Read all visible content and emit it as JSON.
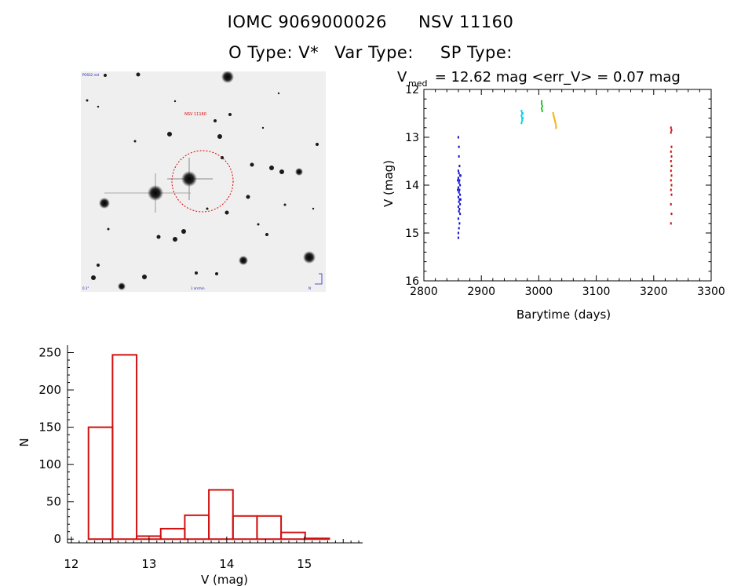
{
  "header": {
    "object_id": "IOMC 9069000026",
    "alt_name": "NSV 11160",
    "o_type_label": "O Type: V*",
    "var_type_label": "Var Type:",
    "sp_type_label": "SP Type:"
  },
  "sky_image": {
    "marker_label": "NSV 11160",
    "corner_labels": [
      "POSS2 red",
      "0.1°",
      "1 arcmin",
      "N"
    ]
  },
  "chart_data": [
    {
      "type": "scatter",
      "title_main": "V",
      "title_sub": "med",
      "title_rest": " = 12.62 mag <err_V> = 0.07 mag",
      "xlabel": "Barytime (days)",
      "ylabel": "V (mag)",
      "xlim": [
        2800,
        3300
      ],
      "ylim": [
        16,
        12
      ],
      "y_inverted": true,
      "x_ticks": [
        2800,
        2900,
        3000,
        3100,
        3200,
        3300
      ],
      "y_ticks": [
        12,
        13,
        14,
        15,
        16
      ],
      "series": [
        {
          "color": "#1010d0",
          "points": [
            [
              2860,
              13.0
            ],
            [
              2861,
              13.2
            ],
            [
              2861,
              13.4
            ],
            [
              2862,
              13.6
            ],
            [
              2860,
              13.7
            ],
            [
              2861,
              13.75
            ],
            [
              2863,
              13.8
            ],
            [
              2860,
              13.85
            ],
            [
              2862,
              13.9
            ],
            [
              2861,
              13.95
            ],
            [
              2863,
              14.0
            ],
            [
              2860,
              14.05
            ],
            [
              2862,
              14.1
            ],
            [
              2861,
              14.15
            ],
            [
              2863,
              14.2
            ],
            [
              2860,
              14.25
            ],
            [
              2862,
              14.3
            ],
            [
              2861,
              14.35
            ],
            [
              2863,
              14.4
            ],
            [
              2860,
              14.45
            ],
            [
              2862,
              14.5
            ],
            [
              2861,
              14.55
            ],
            [
              2863,
              14.6
            ],
            [
              2860,
              14.7
            ],
            [
              2862,
              14.8
            ],
            [
              2861,
              14.9
            ],
            [
              2860,
              15.0
            ],
            [
              2860,
              15.1
            ],
            [
              2864,
              13.8
            ],
            [
              2864,
              14.3
            ],
            [
              2859,
              14.1
            ],
            [
              2859,
              13.9
            ]
          ]
        },
        {
          "color": "#00d0e8",
          "points": [
            [
              2970,
              12.45
            ],
            [
              2971,
              12.5
            ],
            [
              2970,
              12.55
            ],
            [
              2972,
              12.6
            ],
            [
              2971,
              12.65
            ],
            [
              2970,
              12.7
            ],
            [
              2972,
              12.5
            ],
            [
              2971,
              12.6
            ]
          ]
        },
        {
          "color": "#20c020",
          "points": [
            [
              3005,
              12.25
            ],
            [
              3005,
              12.3
            ],
            [
              3006,
              12.35
            ],
            [
              3005,
              12.4
            ],
            [
              3006,
              12.45
            ]
          ]
        },
        {
          "color": "#f0b000",
          "points": [
            [
              3025,
              12.5
            ],
            [
              3026,
              12.55
            ],
            [
              3027,
              12.6
            ],
            [
              3028,
              12.65
            ],
            [
              3029,
              12.7
            ],
            [
              3030,
              12.75
            ],
            [
              3030,
              12.8
            ]
          ]
        },
        {
          "color": "#d01010",
          "points": [
            [
              3230,
              12.8
            ],
            [
              3231,
              12.85
            ],
            [
              3230,
              12.9
            ],
            [
              3231,
              13.2
            ],
            [
              3230,
              13.3
            ],
            [
              3231,
              13.4
            ],
            [
              3230,
              13.5
            ],
            [
              3231,
              13.6
            ],
            [
              3230,
              13.7
            ],
            [
              3231,
              13.8
            ],
            [
              3230,
              13.9
            ],
            [
              3231,
              14.0
            ],
            [
              3230,
              14.1
            ],
            [
              3231,
              14.2
            ],
            [
              3230,
              14.4
            ],
            [
              3231,
              14.6
            ],
            [
              3230,
              14.8
            ]
          ]
        }
      ]
    },
    {
      "type": "bar",
      "xlabel": "V (mag)",
      "ylabel": "N",
      "xlim": [
        11.95,
        15.75
      ],
      "ylim": [
        -5,
        260
      ],
      "x_ticks": [
        12,
        13,
        14,
        15
      ],
      "y_ticks": [
        0,
        50,
        100,
        150,
        200,
        250
      ],
      "bin_edges": [
        12.22,
        12.53,
        12.84,
        13.15,
        13.46,
        13.77,
        14.08,
        14.39,
        14.7,
        15.01,
        15.32
      ],
      "values": [
        150,
        247,
        4,
        14,
        32,
        66,
        31,
        31,
        9,
        1
      ],
      "bar_color": "#d01010"
    }
  ]
}
